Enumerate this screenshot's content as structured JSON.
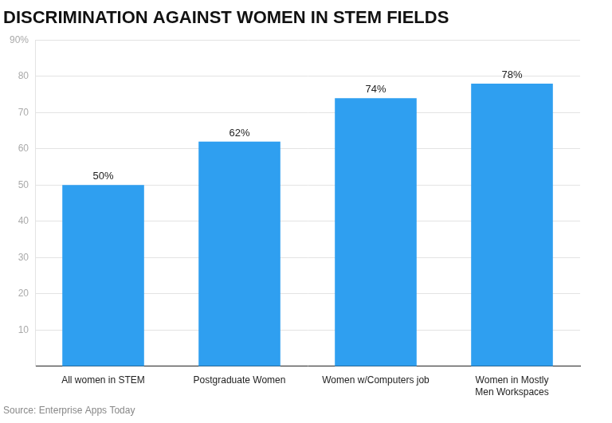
{
  "chart_data": {
    "type": "bar",
    "title": "DISCRIMINATION AGAINST WOMEN IN STEM FIELDS",
    "source": "Source: Enterprise Apps Today",
    "categories": [
      "All women in STEM",
      "Postgraduate Women",
      "Women w/Computers job",
      "Women in Mostly Men Workspaces"
    ],
    "values": [
      50,
      62,
      74,
      78
    ],
    "value_labels": [
      "50%",
      "62%",
      "74%",
      "78%"
    ],
    "data_labels": true,
    "color": "#2f9ff0",
    "ylim": [
      0,
      90
    ],
    "yticks": [
      10,
      20,
      30,
      40,
      50,
      60,
      70,
      80,
      {
        "value": 90,
        "label": "90%"
      }
    ],
    "grid": true
  }
}
